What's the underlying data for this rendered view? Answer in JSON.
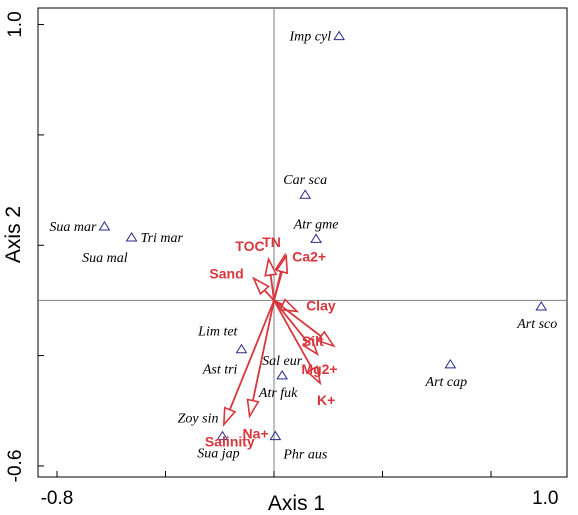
{
  "chart_data": {
    "type": "scatter",
    "title": "",
    "xlabel": "Axis 1",
    "ylabel": "Axis 2",
    "xlim": [
      -0.87,
      1.08
    ],
    "ylim": [
      -0.64,
      1.06
    ],
    "x_tick_labels": [
      {
        "value": -0.8,
        "text": "-0.8"
      },
      {
        "value": 1.0,
        "text": "1.0"
      }
    ],
    "y_tick_labels": [
      {
        "value": 1.0,
        "text": "1.0"
      },
      {
        "value": -0.6,
        "text": "-0.6"
      }
    ],
    "x_minor_ticks": [
      -0.8,
      -0.4,
      0.0,
      0.4,
      0.8
    ],
    "y_minor_ticks": [
      1.0,
      0.6,
      0.2,
      -0.2,
      -0.6
    ],
    "origin": [
      0,
      0
    ],
    "arrow_color": "#d9363e",
    "marker_color": "#2a2a8c",
    "species": [
      {
        "name": "Imp cyl",
        "x": 0.24,
        "y": 0.96,
        "label_pos": "left"
      },
      {
        "name": "Car sca",
        "x": 0.115,
        "y": 0.385,
        "label_pos": "above"
      },
      {
        "name": "Atr gme",
        "x": 0.155,
        "y": 0.225,
        "label_pos": "above"
      },
      {
        "name": "Sua mar",
        "x": -0.625,
        "y": 0.27,
        "label_pos": "left"
      },
      {
        "name": "Tri mar",
        "x": -0.525,
        "y": 0.23,
        "label_pos": "right"
      },
      {
        "name": "Sua mal",
        "x": -0.525,
        "y": 0.23,
        "label_pos": "below-left"
      },
      {
        "name": "Art sco",
        "x": 0.985,
        "y": -0.02,
        "label_pos": "below"
      },
      {
        "name": "Art cap",
        "x": 0.65,
        "y": -0.23,
        "label_pos": "below"
      },
      {
        "name": "Lim tet",
        "x": -0.12,
        "y": -0.175,
        "label_pos": "above-left"
      },
      {
        "name": "Ast tri",
        "x": -0.12,
        "y": -0.175,
        "label_pos": "below-left"
      },
      {
        "name": "Sal eur",
        "x": 0.03,
        "y": -0.27,
        "label_pos": "above"
      },
      {
        "name": "Atr fuk",
        "x": 0.03,
        "y": -0.27,
        "label_pos": "below"
      },
      {
        "name": "Zoy sin",
        "x": -0.19,
        "y": -0.49,
        "label_pos": "above-left"
      },
      {
        "name": "Sua jap",
        "x": -0.19,
        "y": -0.49,
        "label_pos": "below"
      },
      {
        "name": "Phr aus",
        "x": 0.005,
        "y": -0.49,
        "label_pos": "below-right"
      }
    ],
    "env_vectors": [
      {
        "name": "TOC",
        "x": -0.02,
        "y": 0.15,
        "label_pos": "above-left"
      },
      {
        "name": "TN",
        "x": 0.04,
        "y": 0.165,
        "label_pos": "above-left"
      },
      {
        "name": "Ca2+",
        "x": 0.045,
        "y": 0.16,
        "label_pos": "right"
      },
      {
        "name": "Sand",
        "x": -0.075,
        "y": 0.08,
        "label_pos": "left"
      },
      {
        "name": "Clay",
        "x": 0.085,
        "y": -0.04,
        "label_pos": "above-right"
      },
      {
        "name": "Silt",
        "x": 0.22,
        "y": -0.165,
        "label_pos": "left"
      },
      {
        "name": "Mg2+",
        "x": 0.16,
        "y": -0.195,
        "label_pos": "below-right"
      },
      {
        "name": "K+",
        "x": 0.17,
        "y": -0.3,
        "label_pos": "below"
      },
      {
        "name": "Na+",
        "x": -0.09,
        "y": -0.42,
        "label_pos": "below"
      },
      {
        "name": "Salinity",
        "x": -0.185,
        "y": -0.45,
        "label_pos": "below"
      }
    ]
  }
}
